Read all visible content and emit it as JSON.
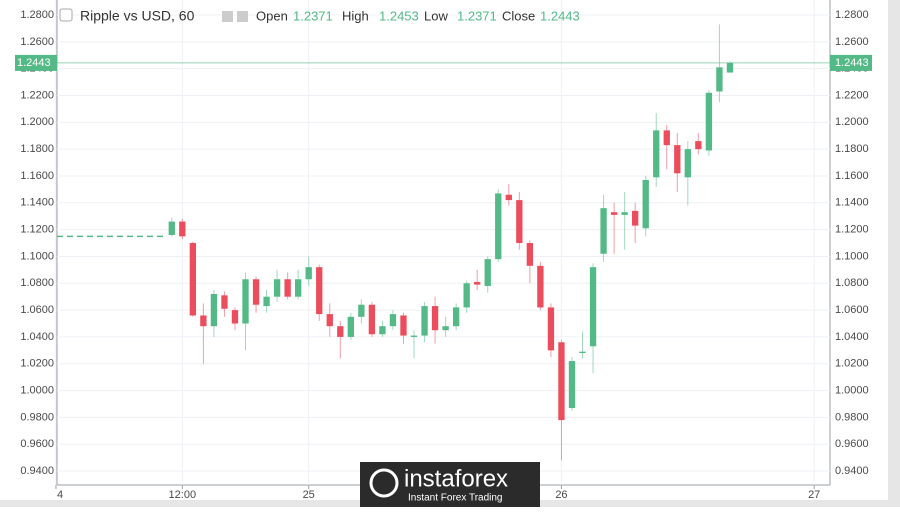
{
  "chart_data": {
    "type": "candlestick",
    "title": "Ripple vs USD, 60",
    "legend_labels": [
      "Open",
      "High",
      "Low",
      "Close"
    ],
    "x": [
      11,
      12,
      13,
      14,
      15,
      16,
      17,
      18,
      19,
      20,
      21,
      22,
      23,
      24,
      25,
      26,
      27,
      28,
      29,
      30,
      31,
      32,
      33,
      34,
      35,
      36,
      37,
      38,
      39,
      40,
      41,
      42,
      43,
      44,
      45,
      46,
      47,
      48,
      49,
      50,
      51,
      52,
      53,
      54,
      55,
      56,
      57,
      58,
      59,
      60,
      61,
      62,
      63,
      64
    ],
    "open": [
      1.116,
      1.126,
      1.11,
      1.056,
      1.048,
      1.071,
      1.06,
      1.05,
      1.083,
      1.063,
      1.07,
      1.083,
      1.07,
      1.083,
      1.092,
      1.057,
      1.048,
      1.04,
      1.055,
      1.064,
      1.042,
      1.048,
      1.056,
      1.04,
      1.041,
      1.063,
      1.045,
      1.048,
      1.062,
      1.081,
      1.078,
      1.098,
      1.146,
      1.142,
      1.11,
      1.093,
      1.062,
      1.036,
      0.987,
      1.028,
      1.033,
      1.102,
      1.133,
      1.131,
      1.134,
      1.121,
      1.159,
      1.194,
      1.183,
      1.159,
      1.186,
      1.179,
      1.223,
      1.2371
    ],
    "high": [
      1.129,
      1.128,
      1.111,
      1.065,
      1.075,
      1.074,
      1.062,
      1.088,
      1.085,
      1.075,
      1.09,
      1.088,
      1.09,
      1.1,
      1.094,
      1.065,
      1.052,
      1.058,
      1.068,
      1.066,
      1.052,
      1.06,
      1.058,
      1.045,
      1.066,
      1.07,
      1.055,
      1.065,
      1.082,
      1.09,
      1.1,
      1.15,
      1.154,
      1.148,
      1.112,
      1.096,
      1.065,
      1.038,
      1.025,
      1.044,
      1.095,
      1.146,
      1.14,
      1.148,
      1.14,
      1.16,
      1.207,
      1.198,
      1.192,
      1.186,
      1.192,
      1.224,
      1.273,
      1.2453
    ],
    "low": [
      1.115,
      1.113,
      1.055,
      1.02,
      1.04,
      1.055,
      1.045,
      1.03,
      1.058,
      1.058,
      1.066,
      1.068,
      1.068,
      1.078,
      1.052,
      1.04,
      1.024,
      1.038,
      1.05,
      1.04,
      1.04,
      1.045,
      1.035,
      1.024,
      1.036,
      1.035,
      1.04,
      1.045,
      1.058,
      1.075,
      1.073,
      1.096,
      1.138,
      1.105,
      1.08,
      1.06,
      1.025,
      0.948,
      0.985,
      1.024,
      1.013,
      1.096,
      1.102,
      1.105,
      1.11,
      1.115,
      1.152,
      1.165,
      1.148,
      1.138,
      1.176,
      1.175,
      1.215,
      1.2371
    ],
    "close": [
      1.126,
      1.115,
      1.056,
      1.048,
      1.072,
      1.061,
      1.05,
      1.083,
      1.064,
      1.07,
      1.083,
      1.07,
      1.083,
      1.092,
      1.057,
      1.048,
      1.04,
      1.055,
      1.064,
      1.042,
      1.048,
      1.057,
      1.041,
      1.041,
      1.063,
      1.045,
      1.048,
      1.062,
      1.08,
      1.079,
      1.098,
      1.147,
      1.142,
      1.11,
      1.093,
      1.062,
      1.03,
      0.978,
      1.022,
      1.029,
      1.092,
      1.136,
      1.131,
      1.133,
      1.123,
      1.157,
      1.194,
      1.183,
      1.162,
      1.18,
      1.18,
      1.222,
      1.241,
      1.2443
    ],
    "up_color": "#53b987",
    "down_color": "#eb4d5c",
    "prev_line": 1.115,
    "ylim": [
      0.9296,
      1.2912
    ],
    "yticks": [
      {
        "value": 0.94,
        "label": "0.9400"
      },
      {
        "value": 0.96,
        "label": "0.9600"
      },
      {
        "value": 0.98,
        "label": "0.9800"
      },
      {
        "value": 1.0,
        "label": "1.0000"
      },
      {
        "value": 1.02,
        "label": "1.0200"
      },
      {
        "value": 1.04,
        "label": "1.0400"
      },
      {
        "value": 1.06,
        "label": "1.0600"
      },
      {
        "value": 1.08,
        "label": "1.0800"
      },
      {
        "value": 1.1,
        "label": "1.1000"
      },
      {
        "value": 1.12,
        "label": "1.1200"
      },
      {
        "value": 1.14,
        "label": "1.1400"
      },
      {
        "value": 1.16,
        "label": "1.1600"
      },
      {
        "value": 1.18,
        "label": "1.1800"
      },
      {
        "value": 1.2,
        "label": "1.2000"
      },
      {
        "value": 1.22,
        "label": "1.2200"
      },
      {
        "value": 1.24,
        "label": "1.2400"
      },
      {
        "value": 1.26,
        "label": "1.2600"
      },
      {
        "value": 1.28,
        "label": "1.2800"
      }
    ],
    "xlim": [
      0.1,
      73.5
    ],
    "xticks": [
      {
        "value": 0,
        "label": "4"
      },
      {
        "value": 12,
        "label": "12:00"
      },
      {
        "value": 24,
        "label": "25"
      },
      {
        "value": 48,
        "label": "26"
      },
      {
        "value": 72,
        "label": "27"
      }
    ],
    "grid": true,
    "watermark": {
      "brand": "instaforex",
      "tagline": "Instant Forex Trading"
    }
  }
}
